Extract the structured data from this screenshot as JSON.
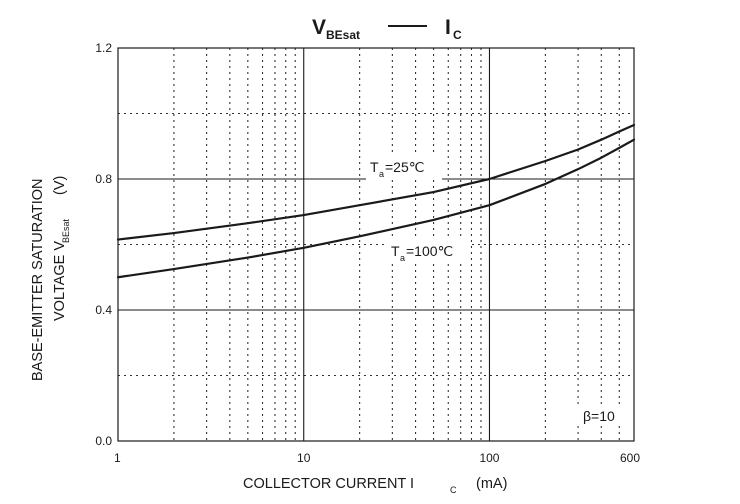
{
  "title": {
    "left_main": "V",
    "left_sub": "BEsat",
    "right_main": "I",
    "right_sub": "C"
  },
  "chart_data": {
    "type": "line",
    "x_scale": "log",
    "xlim": [
      1,
      600
    ],
    "ylim": [
      0.0,
      1.2
    ],
    "x_tick_labels": [
      "1",
      "10",
      "100",
      "600"
    ],
    "y_tick_labels": [
      "0.0",
      "0.4",
      "0.8",
      "1.2"
    ],
    "x_major_ticks": [
      1,
      10,
      100,
      600
    ],
    "y_major_ticks": [
      0.0,
      0.4,
      0.8,
      1.2
    ],
    "y_minor_ticks": [
      0.2,
      0.6,
      1.0
    ],
    "x_minor_ticks": [
      2,
      3,
      4,
      5,
      6,
      7,
      8,
      9,
      20,
      30,
      40,
      50,
      60,
      70,
      80,
      90,
      200,
      300,
      400,
      500
    ],
    "grid": true,
    "xlabel": {
      "main": "COLLECTOR CURRENT    I",
      "sub": "C",
      "unit": "(mA)"
    },
    "ylabel": {
      "line1": "BASE-EMITTER SATURATION",
      "line2_main": "VOLTAGE    V",
      "line2_sub": "BEsat",
      "line2_unit": "(V)"
    },
    "series": [
      {
        "x": [
          1,
          2,
          5,
          10,
          20,
          50,
          100,
          200,
          300,
          400,
          500,
          600
        ],
        "y": [
          0.615,
          0.635,
          0.665,
          0.69,
          0.72,
          0.76,
          0.8,
          0.855,
          0.89,
          0.92,
          0.945,
          0.965
        ]
      },
      {
        "x": [
          1,
          2,
          5,
          10,
          20,
          50,
          100,
          200,
          300,
          400,
          500,
          600
        ],
        "y": [
          0.5,
          0.525,
          0.56,
          0.59,
          0.625,
          0.675,
          0.72,
          0.785,
          0.83,
          0.865,
          0.895,
          0.92
        ]
      }
    ],
    "annotations": [
      {
        "main": "T",
        "sub": "a",
        "rest": "=25℃",
        "x": 27,
        "y": 0.81
      },
      {
        "main": "T",
        "sub": "a",
        "rest": "=100℃",
        "x": 32,
        "y": 0.58
      }
    ],
    "corner_note": "β=10"
  }
}
